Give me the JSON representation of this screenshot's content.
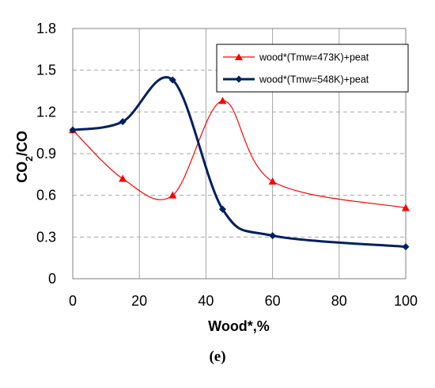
{
  "chart_data": {
    "type": "line",
    "xlabel": "Wood*,%",
    "ylabel_main": "CO",
    "ylabel_sub": "2",
    "ylabel_rest": "/CO",
    "xlim": [
      0,
      100
    ],
    "ylim": [
      0,
      1.8
    ],
    "x_ticks": [
      0,
      20,
      40,
      60,
      80,
      100
    ],
    "x_tick_labels": [
      "0",
      "20",
      "40",
      "60",
      "80",
      "100"
    ],
    "y_ticks": [
      0,
      0.3,
      0.6,
      0.9,
      1.2,
      1.5,
      1.8
    ],
    "y_tick_labels": [
      "0",
      "0.3",
      "0.6",
      "0.9",
      "1.2",
      "1.5",
      "1.8"
    ],
    "grid": true,
    "legend_position": "top-right",
    "series": [
      {
        "name": "wood*(Tmw=473K)+peat",
        "color": "#ff0000",
        "marker": "triangle",
        "x": [
          0,
          15,
          30,
          45,
          60,
          100
        ],
        "values": [
          1.07,
          0.72,
          0.6,
          1.28,
          0.7,
          0.51
        ]
      },
      {
        "name": "wood*(Tmw=548K)+peat",
        "color": "#002060",
        "marker": "diamond",
        "x": [
          0,
          15,
          30,
          45,
          60,
          100
        ],
        "values": [
          1.07,
          1.13,
          1.43,
          0.5,
          0.31,
          0.23
        ]
      }
    ]
  },
  "caption": "(e)"
}
